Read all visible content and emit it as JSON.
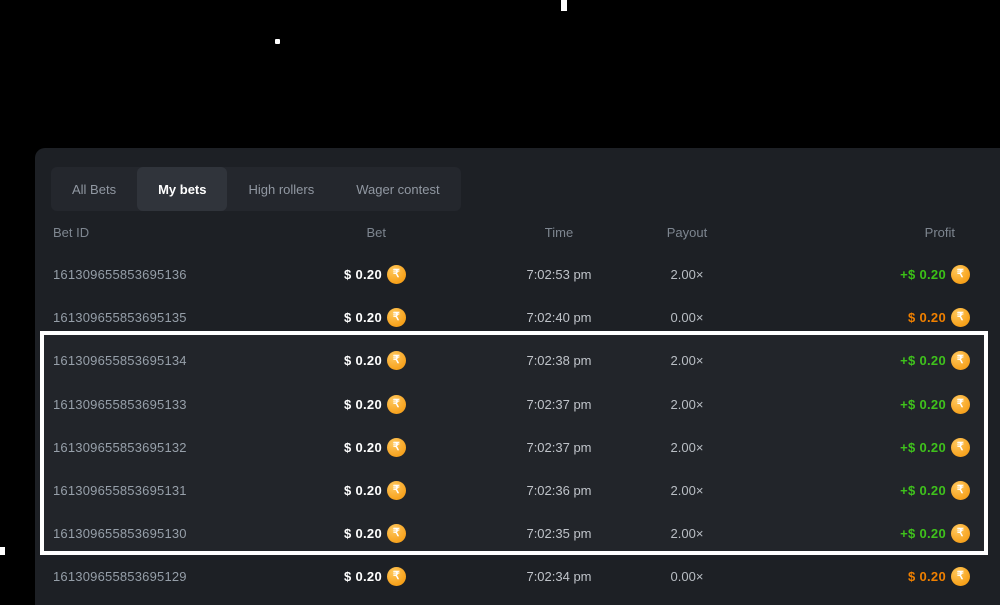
{
  "tabs": {
    "items": [
      {
        "label": "All Bets",
        "active": false
      },
      {
        "label": "My bets",
        "active": true
      },
      {
        "label": "High rollers",
        "active": false
      },
      {
        "label": "Wager contest",
        "active": false
      }
    ]
  },
  "table": {
    "columns": {
      "bet_id": "Bet ID",
      "bet": "Bet",
      "time": "Time",
      "payout": "Payout",
      "profit": "Profit"
    },
    "rows": [
      {
        "bet_id": "161309655853695136",
        "bet": "$ 0.20",
        "time": "7:02:53 pm",
        "payout": "2.00×",
        "profit": "+$ 0.20",
        "result": "win",
        "highlighted": false
      },
      {
        "bet_id": "161309655853695135",
        "bet": "$ 0.20",
        "time": "7:02:40 pm",
        "payout": "0.00×",
        "profit": "$ 0.20",
        "result": "loss",
        "highlighted": false
      },
      {
        "bet_id": "161309655853695134",
        "bet": "$ 0.20",
        "time": "7:02:38 pm",
        "payout": "2.00×",
        "profit": "+$ 0.20",
        "result": "win",
        "highlighted": true
      },
      {
        "bet_id": "161309655853695133",
        "bet": "$ 0.20",
        "time": "7:02:37 pm",
        "payout": "2.00×",
        "profit": "+$ 0.20",
        "result": "win",
        "highlighted": true
      },
      {
        "bet_id": "161309655853695132",
        "bet": "$ 0.20",
        "time": "7:02:37 pm",
        "payout": "2.00×",
        "profit": "+$ 0.20",
        "result": "win",
        "highlighted": true
      },
      {
        "bet_id": "161309655853695131",
        "bet": "$ 0.20",
        "time": "7:02:36 pm",
        "payout": "2.00×",
        "profit": "+$ 0.20",
        "result": "win",
        "highlighted": true
      },
      {
        "bet_id": "161309655853695130",
        "bet": "$ 0.20",
        "time": "7:02:35 pm",
        "payout": "2.00×",
        "profit": "+$ 0.20",
        "result": "win",
        "highlighted": true
      },
      {
        "bet_id": "161309655853695129",
        "bet": "$ 0.20",
        "time": "7:02:34 pm",
        "payout": "0.00×",
        "profit": "$ 0.20",
        "result": "loss",
        "highlighted": false
      }
    ]
  },
  "icons": {
    "coin": {
      "name": "rupee-coin-icon",
      "symbol": "₹"
    }
  },
  "colors": {
    "panel_background": "#1d2025",
    "profit_win": "#3bc117",
    "profit_loss": "#f08000",
    "coin_orange": "#f7a11a",
    "highlight_border": "#ffffff"
  }
}
